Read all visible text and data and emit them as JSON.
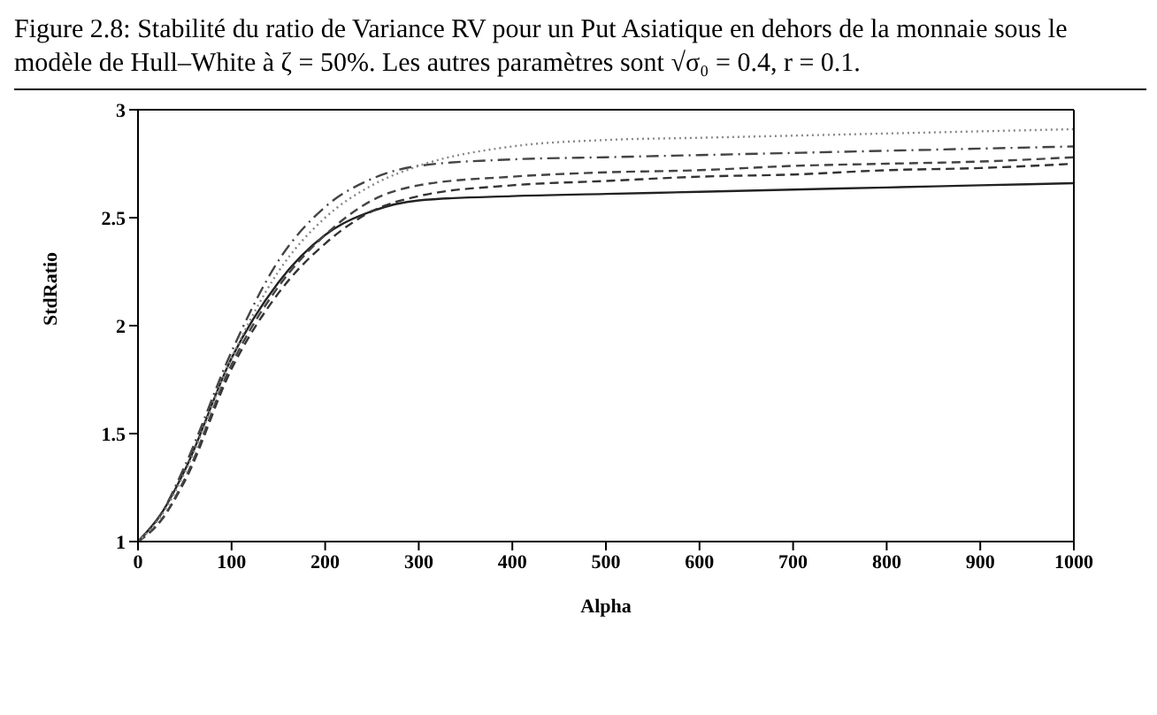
{
  "chart_data": {
    "type": "line",
    "title": "Figure 2.8: Stabilité du ratio de Variance RV pour un Put Asiatique en dehors de la monnaie sous le modèle de Hull–White à ζ = 50%. Les autres paramètres sont √σ₀ = 0.4, r = 0.1.",
    "xlabel": "Alpha",
    "ylabel": "StdRatio",
    "x": [
      0,
      25,
      50,
      100,
      150,
      200,
      250,
      300,
      400,
      500,
      600,
      700,
      800,
      900,
      1000
    ],
    "series": [
      {
        "color": "#222222",
        "line_style": "solid",
        "values": [
          1,
          1.13,
          1.33,
          1.85,
          2.2,
          2.42,
          2.53,
          2.58,
          2.6,
          2.61,
          2.62,
          2.63,
          2.64,
          2.65,
          2.66
        ]
      },
      {
        "color": "#333333",
        "line_style": "dashed",
        "values": [
          1,
          1.1,
          1.28,
          1.8,
          2.15,
          2.38,
          2.53,
          2.6,
          2.65,
          2.67,
          2.69,
          2.7,
          2.72,
          2.73,
          2.75
        ]
      },
      {
        "color": "#444444",
        "line_style": "dashed",
        "values": [
          1,
          1.1,
          1.29,
          1.82,
          2.18,
          2.42,
          2.58,
          2.65,
          2.69,
          2.71,
          2.72,
          2.74,
          2.75,
          2.76,
          2.78
        ]
      },
      {
        "color": "#444444",
        "line_style": "dashdot",
        "values": [
          1,
          1.13,
          1.35,
          1.88,
          2.3,
          2.55,
          2.68,
          2.74,
          2.77,
          2.78,
          2.79,
          2.8,
          2.81,
          2.82,
          2.83
        ]
      },
      {
        "color": "#888888",
        "line_style": "dotted",
        "values": [
          1,
          1.12,
          1.32,
          1.85,
          2.25,
          2.5,
          2.65,
          2.74,
          2.83,
          2.86,
          2.87,
          2.88,
          2.89,
          2.9,
          2.91
        ]
      }
    ],
    "xlim": [
      0,
      1000
    ],
    "xticks": [
      0,
      100,
      200,
      300,
      400,
      500,
      600,
      700,
      800,
      900,
      1000
    ],
    "ylim": [
      1,
      3
    ],
    "yticks": [
      1,
      1.5,
      2,
      2.5,
      3
    ],
    "grid": false,
    "legend": false,
    "marker": "none"
  }
}
